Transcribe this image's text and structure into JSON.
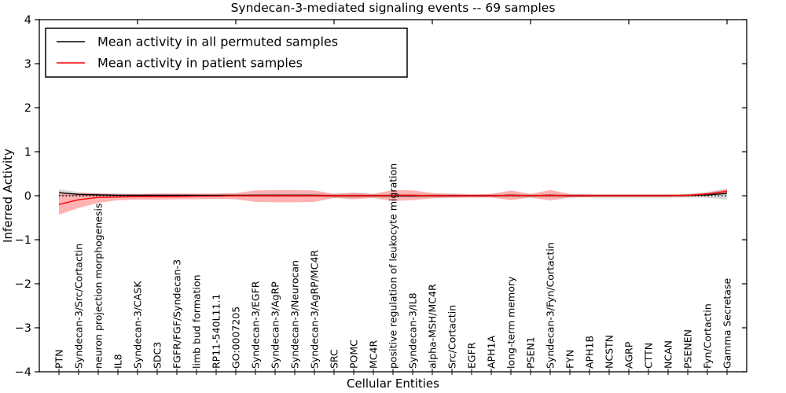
{
  "figure": {
    "background": "#ffffff"
  },
  "chart_data": {
    "type": "line",
    "title": "Syndecan-3-mediated signaling events -- 69 samples",
    "xlabel": "Cellular Entities",
    "ylabel": "Inferred Activity",
    "ylim": [
      -4,
      4
    ],
    "yticks": [
      -4,
      -3,
      -2,
      -1,
      0,
      1,
      2,
      3,
      4
    ],
    "x_major_ticks": [
      5,
      10,
      15,
      20,
      25,
      30,
      35
    ],
    "grid": false,
    "legend_position": "upper left",
    "zero_line": {
      "style": "dotted",
      "color": "#000000",
      "y": 0
    },
    "colors": {
      "permuted_line": "#000000",
      "patient_line": "#ff0000",
      "permuted_band": "#999999",
      "patient_band": "#ff0000",
      "frame": "#000000"
    },
    "categories": [
      "PTN",
      "Syndecan-3/Src/Cortactin",
      "neuron projection morphogenesis",
      "IL8",
      "Syndecan-3/CASK",
      "SDC3",
      "FGFR/FGF/Syndecan-3",
      "limb bud formation",
      "RP11-540L11.1",
      "GO:0007205",
      "Syndecan-3/EGFR",
      "Syndecan-3/AgRP",
      "Syndecan-3/Neurocan",
      "Syndecan-3/AgRP/MC4R",
      "SRC",
      "POMC",
      "MC4R",
      "positive regulation of leukocyte migration",
      "Syndecan-3/IL8",
      "alpha-MSH/MC4R",
      "Src/Cortactin",
      "EGFR",
      "APH1A",
      "long-term memory",
      "PSEN1",
      "Syndecan-3/Fyn/Cortactin",
      "FYN",
      "APH1B",
      "NCSTN",
      "AGRP",
      "CTTN",
      "NCAN",
      "PSENEN",
      "Fyn/Cortactin",
      "Gamma Secretase"
    ],
    "series": [
      {
        "name": "Mean activity in all permuted samples",
        "color": "#000000",
        "band_color": "#999999",
        "band_alpha": 0.35,
        "values": [
          0.07,
          0.03,
          0.02,
          0.01,
          0.01,
          0.01,
          0.01,
          0.01,
          0.01,
          0.01,
          0.01,
          0.01,
          0.01,
          0.01,
          0.0,
          0.0,
          0.0,
          0.0,
          0.0,
          0.0,
          0.0,
          0.0,
          0.0,
          0.01,
          0.0,
          0.01,
          0.0,
          0.0,
          0.0,
          0.0,
          0.0,
          0.0,
          0.01,
          0.02,
          0.05
        ],
        "band_hi": [
          0.15,
          0.08,
          0.06,
          0.05,
          0.04,
          0.04,
          0.04,
          0.03,
          0.03,
          0.03,
          0.04,
          0.04,
          0.04,
          0.04,
          0.05,
          0.05,
          0.04,
          0.04,
          0.04,
          0.04,
          0.05,
          0.04,
          0.04,
          0.04,
          0.04,
          0.04,
          0.04,
          0.04,
          0.04,
          0.04,
          0.04,
          0.04,
          0.05,
          0.08,
          0.17
        ],
        "band_lo": [
          -0.01,
          -0.02,
          -0.02,
          -0.02,
          -0.02,
          -0.02,
          -0.02,
          -0.02,
          -0.02,
          -0.02,
          -0.03,
          -0.03,
          -0.03,
          -0.03,
          -0.05,
          -0.05,
          -0.04,
          -0.04,
          -0.04,
          -0.04,
          -0.05,
          -0.04,
          -0.04,
          -0.04,
          -0.04,
          -0.04,
          -0.04,
          -0.04,
          -0.04,
          -0.04,
          -0.04,
          -0.04,
          -0.04,
          -0.05,
          -0.09
        ]
      },
      {
        "name": "Mean activity in patient samples",
        "color": "#ff0000",
        "band_color": "#ff0000",
        "band_alpha": 0.3,
        "values": [
          -0.2,
          -0.09,
          -0.04,
          -0.03,
          -0.02,
          -0.02,
          -0.02,
          -0.01,
          -0.01,
          0.0,
          0.0,
          0.0,
          0.0,
          0.0,
          0.0,
          0.0,
          0.0,
          0.01,
          0.01,
          0.0,
          0.0,
          0.0,
          0.0,
          0.01,
          0.0,
          0.01,
          0.0,
          0.0,
          0.0,
          0.0,
          0.0,
          0.0,
          0.01,
          0.04,
          0.1
        ],
        "band_hi": [
          0.04,
          0.06,
          0.05,
          0.04,
          0.04,
          0.05,
          0.05,
          0.05,
          0.05,
          0.06,
          0.12,
          0.13,
          0.13,
          0.12,
          0.04,
          0.07,
          0.04,
          0.13,
          0.12,
          0.06,
          0.04,
          0.03,
          0.04,
          0.12,
          0.04,
          0.13,
          0.04,
          0.03,
          0.03,
          0.03,
          0.03,
          0.03,
          0.03,
          0.07,
          0.14
        ],
        "band_lo": [
          -0.43,
          -0.28,
          -0.16,
          -0.1,
          -0.09,
          -0.09,
          -0.08,
          -0.08,
          -0.07,
          -0.08,
          -0.14,
          -0.15,
          -0.15,
          -0.14,
          -0.05,
          -0.08,
          -0.05,
          -0.12,
          -0.1,
          -0.06,
          -0.04,
          -0.04,
          -0.04,
          -0.1,
          -0.04,
          -0.11,
          -0.04,
          -0.03,
          -0.03,
          -0.03,
          -0.03,
          -0.03,
          -0.03,
          0.0,
          0.05
        ]
      }
    ]
  }
}
